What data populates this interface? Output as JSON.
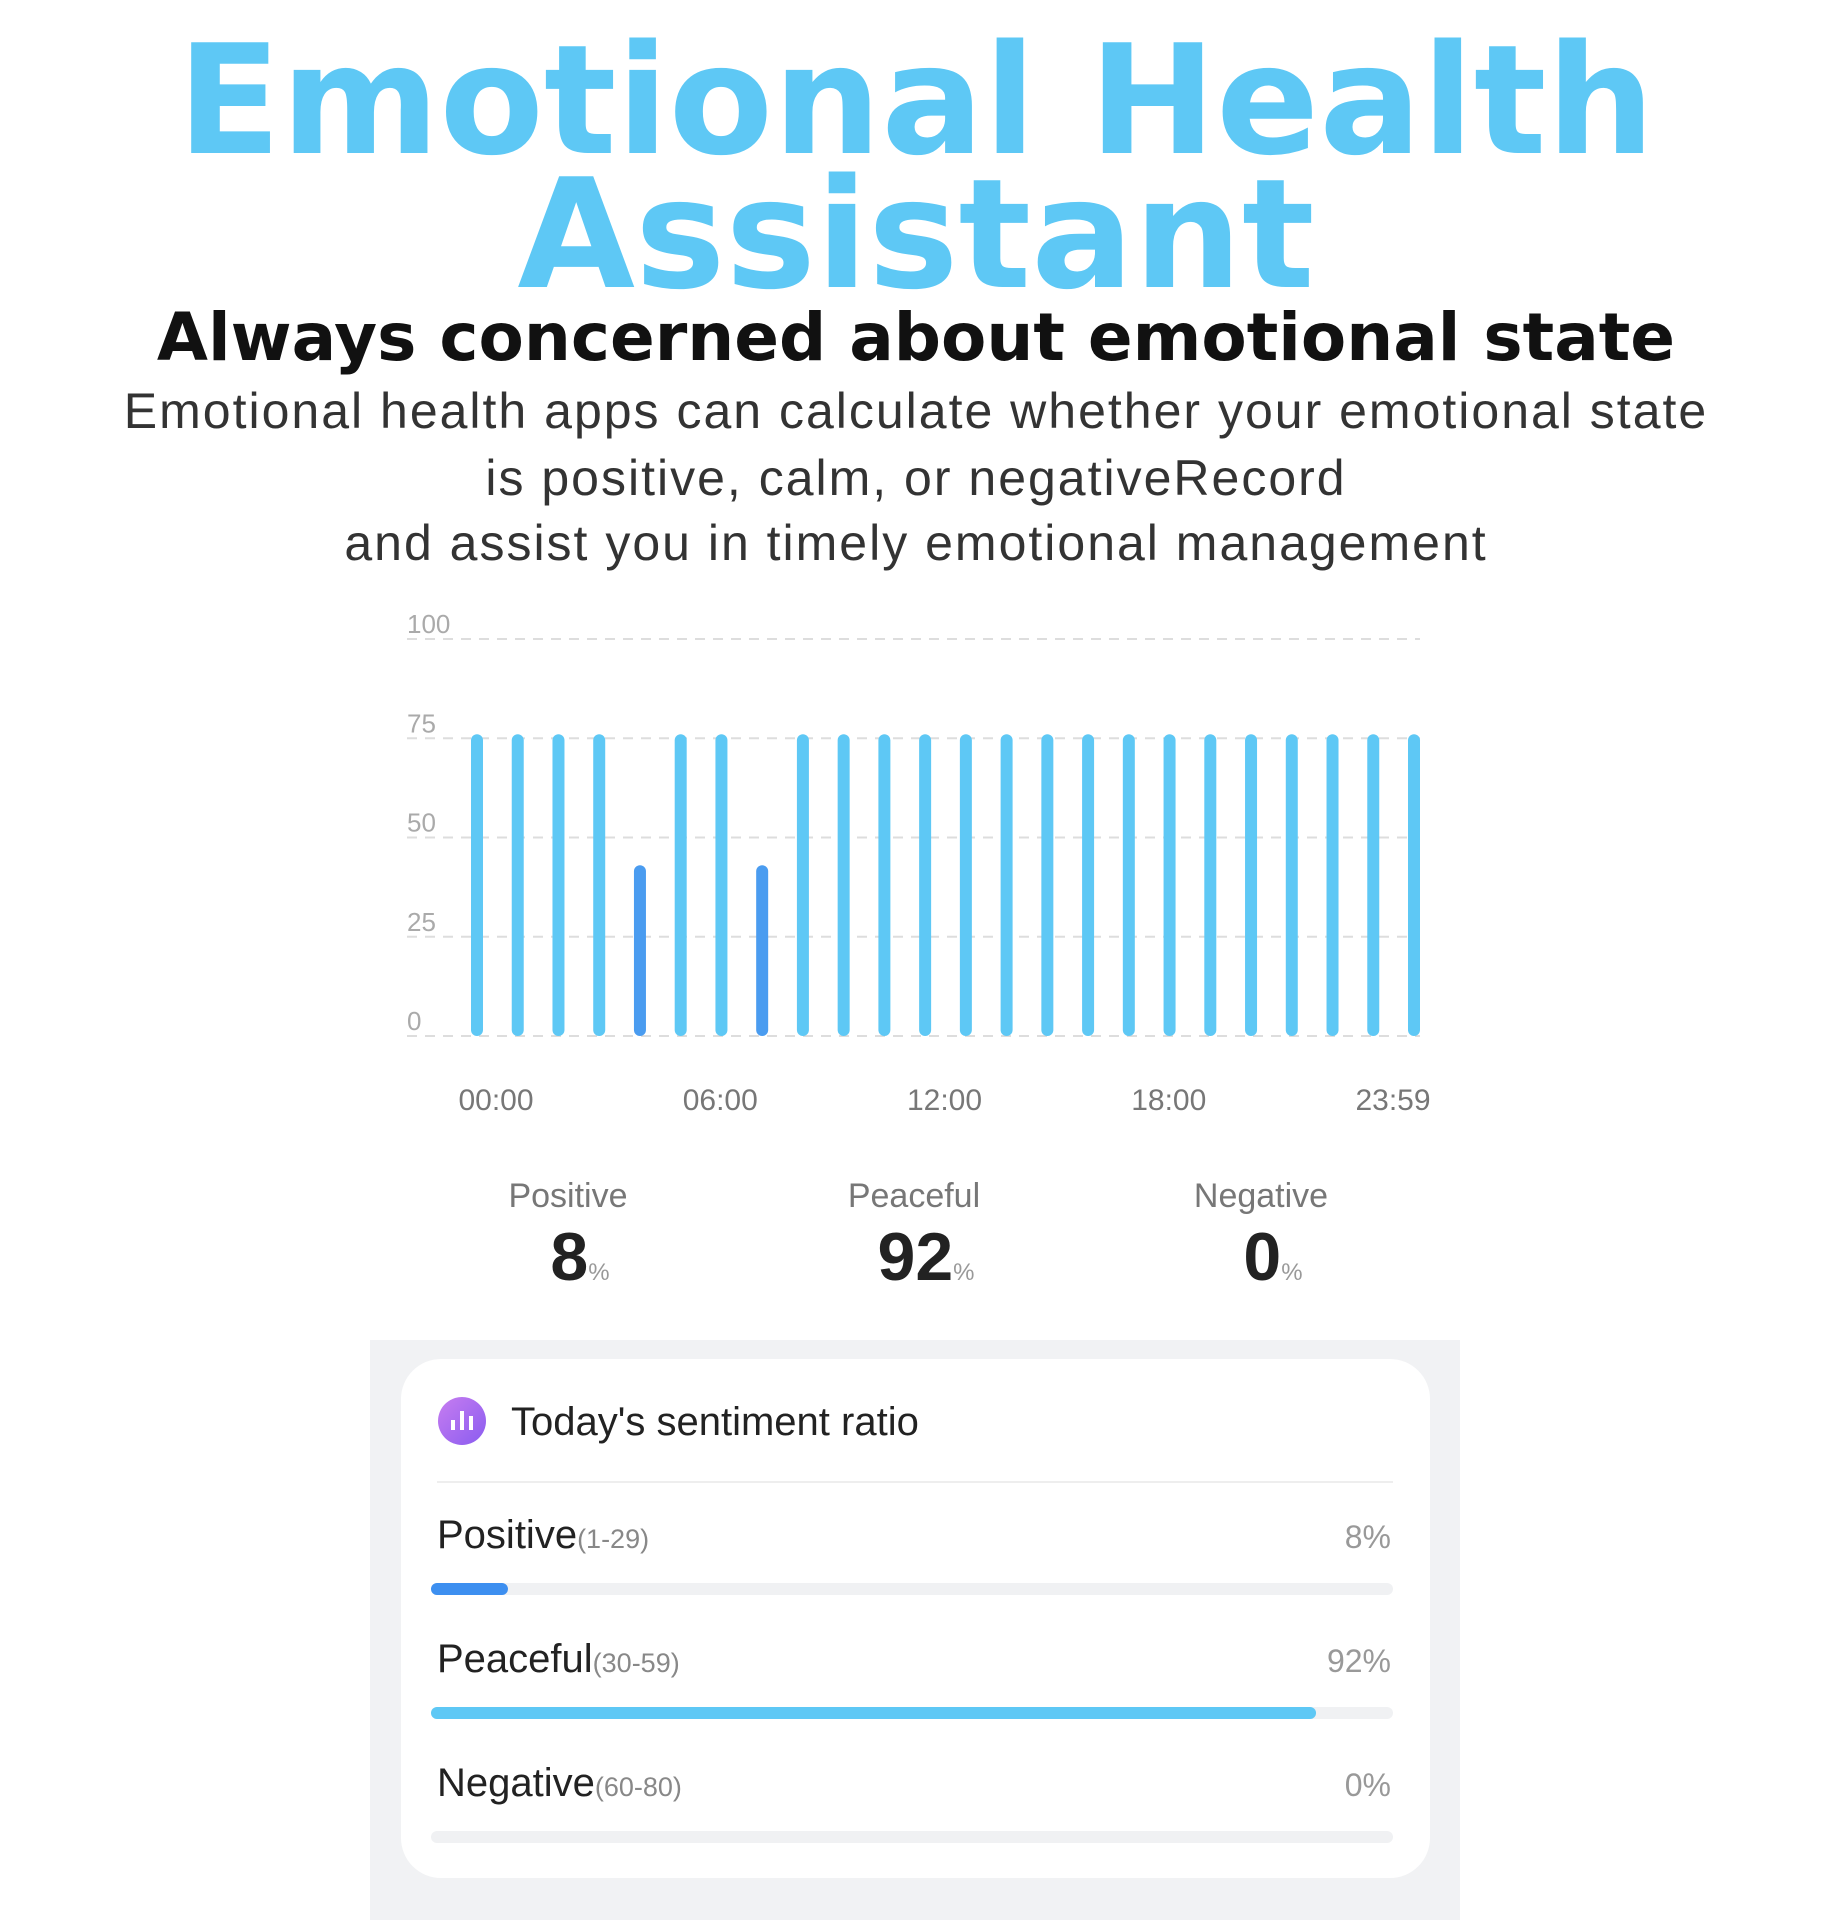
{
  "header": {
    "title_lines": [
      "Emotional Health",
      "Assistant"
    ],
    "subtitle": "Always concerned about emotional state",
    "description_lines": [
      "Emotional health apps can calculate whether your emotional state",
      "is positive, calm, or negativeRecord",
      "and assist you in timely emotional management"
    ]
  },
  "chart_data": {
    "type": "bar",
    "categories": [
      null,
      null,
      null,
      null,
      null,
      null,
      null,
      null,
      null,
      null,
      null,
      null,
      null,
      null,
      null,
      null,
      null,
      null,
      null,
      null,
      null,
      null,
      null,
      null
    ],
    "values": [
      76,
      76,
      76,
      76,
      43,
      76,
      76,
      43,
      76,
      76,
      76,
      76,
      76,
      76,
      76,
      76,
      76,
      76,
      76,
      76,
      76,
      76,
      76,
      76
    ],
    "colors": [
      "#5ec8f5",
      "#5ec8f5",
      "#5ec8f5",
      "#5ec8f5",
      "#4a9cf0",
      "#5ec8f5",
      "#5ec8f5",
      "#4a9cf0",
      "#5ec8f5",
      "#5ec8f5",
      "#5ec8f5",
      "#5ec8f5",
      "#5ec8f5",
      "#5ec8f5",
      "#5ec8f5",
      "#5ec8f5",
      "#5ec8f5",
      "#5ec8f5",
      "#5ec8f5",
      "#5ec8f5",
      "#5ec8f5",
      "#5ec8f5",
      "#5ec8f5",
      "#5ec8f5"
    ],
    "xtick_labels": [
      "00:00",
      "06:00",
      "12:00",
      "18:00",
      "23:59"
    ],
    "ylim": [
      0,
      100
    ],
    "yticks": [
      0,
      25,
      50,
      75,
      100
    ],
    "grid": true
  },
  "stats": [
    {
      "label": "Positive",
      "value": 8,
      "unit": "%"
    },
    {
      "label": "Peaceful",
      "value": 92,
      "unit": "%"
    },
    {
      "label": "Negative",
      "value": 0,
      "unit": "%"
    }
  ],
  "card": {
    "title": "Today's sentiment ratio",
    "rows": [
      {
        "name": "Positive",
        "range": "(1-29)",
        "value": 8,
        "value_label": "8%",
        "color": "#3d8ff0"
      },
      {
        "name": "Peaceful",
        "range": "(30-59)",
        "value": 92,
        "value_label": "92%",
        "color": "#5ec8f5"
      },
      {
        "name": "Negative",
        "range": "(60-80)",
        "value": 0,
        "value_label": "0%",
        "color": "#5ec8f5"
      }
    ]
  }
}
